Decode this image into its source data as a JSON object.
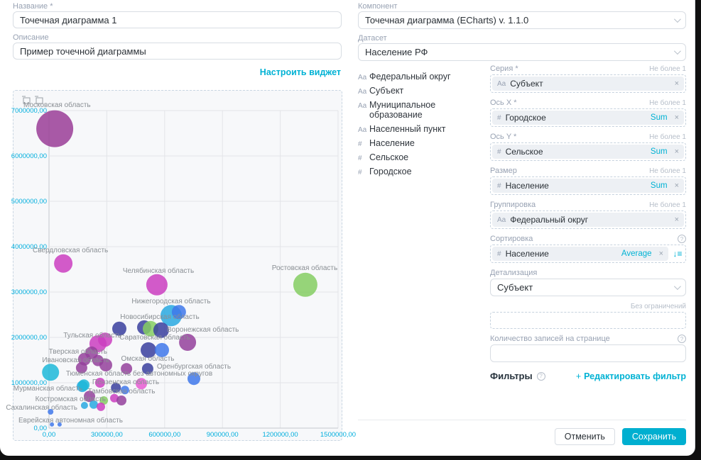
{
  "accent": "#00b2d4",
  "left": {
    "name_label": "Название *",
    "name_value": "Точечная диаграмма 1",
    "desc_label": "Описание",
    "desc_value": "Пример точечной диаграммы",
    "configure_link": "Настроить виджет"
  },
  "right": {
    "component_label": "Компонент",
    "component_value": "Точечная диаграмма (ECharts) v. 1.1.0",
    "dataset_label": "Датасет",
    "dataset_value": "Население РФ",
    "fields": [
      {
        "type": "Aa",
        "name": "Федеральный округ"
      },
      {
        "type": "Aa",
        "name": "Субъект"
      },
      {
        "type": "Aa",
        "name": "Муниципальное образование"
      },
      {
        "type": "Aa",
        "name": "Населенный пункт"
      },
      {
        "type": "#",
        "name": "Население"
      },
      {
        "type": "#",
        "name": "Сельское"
      },
      {
        "type": "#",
        "name": "Городское"
      }
    ],
    "slots": [
      {
        "label": "Серия *",
        "limit": "Не более 1",
        "chip": {
          "type": "Aa",
          "name": "Субъект",
          "agg": null
        }
      },
      {
        "label": "Ось X *",
        "limit": "Не более 1",
        "chip": {
          "type": "#",
          "name": "Городское",
          "agg": "Sum"
        }
      },
      {
        "label": "Ось Y *",
        "limit": "Не более 1",
        "chip": {
          "type": "#",
          "name": "Сельское",
          "agg": "Sum"
        }
      },
      {
        "label": "Размер",
        "limit": "Не более 1",
        "chip": {
          "type": "#",
          "name": "Население",
          "agg": "Sum"
        }
      },
      {
        "label": "Группировка",
        "limit": "Не более 1",
        "chip": {
          "type": "Aa",
          "name": "Федеральный округ",
          "agg": null
        }
      },
      {
        "label": "Сортировка",
        "limit": "",
        "help": true,
        "sort": true,
        "chip": {
          "type": "#",
          "name": "Население",
          "agg": "Average"
        }
      }
    ],
    "detail_label": "Детализация",
    "detail_value": "Субъект",
    "no_limit_label": "Без ограничений",
    "page_size_label": "Количество записей на странице",
    "filters_label": "Фильтры",
    "edit_filter_link": "Редактировать фильтр",
    "cancel_button": "Отменить",
    "save_button": "Сохранить"
  },
  "chart_data": {
    "type": "scatter",
    "xlim": [
      0,
      1500000
    ],
    "ylim": [
      0,
      7000000
    ],
    "x_tick_step": 300000,
    "y_tick_step": 1000000,
    "tick_decimal_suffix": ",00",
    "grid": true,
    "toolbox_icons": [
      "zoom-select-icon",
      "restore-icon"
    ],
    "tick_color": "#00aedd",
    "label_color": "#8a8f94",
    "colors": {
      "deepPurple": "#9a3d96",
      "magenta": "#cb3ec0",
      "purple": "#94419b",
      "navy": "#3a3f9e",
      "royal": "#3f78ea",
      "cyan": "#29a9e0",
      "teal": "#1db9d8",
      "green": "#85ce62",
      "pink": "#e75bd1"
    },
    "points": [
      {
        "name": "Московская область",
        "x": 30000,
        "y": 6600000,
        "r": 26,
        "c": "deepPurple",
        "lbl": {
          "x": 14,
          "y": 23,
          "a": "start"
        }
      },
      {
        "name": "Свердловская область",
        "x": 74000,
        "y": 3630000,
        "r": 13,
        "c": "magenta",
        "lbl": {
          "x": 27,
          "y": 228,
          "a": "start"
        }
      },
      {
        "name": "Челябинская область",
        "x": 560000,
        "y": 3160000,
        "r": 15,
        "c": "magenta",
        "lbl": {
          "x": 204,
          "y": 257,
          "a": "middle"
        }
      },
      {
        "name": "Ростовская область",
        "x": 1330000,
        "y": 3160000,
        "r": 17,
        "c": "green",
        "lbl": {
          "x": 410,
          "y": 253,
          "a": "middle"
        }
      },
      {
        "name": "Нижегородская область",
        "x": 634000,
        "y": 2480000,
        "r": 15,
        "c": "cyan",
        "lbl": {
          "x": 222,
          "y": 300,
          "a": "middle"
        }
      },
      {
        "x": 674000,
        "y": 2560000,
        "r": 10,
        "c": "royal"
      },
      {
        "x": 494000,
        "y": 2220000,
        "r": 10,
        "c": "navy"
      },
      {
        "name": "Новосибирская область",
        "x": 527000,
        "y": 2190000,
        "r": 11,
        "c": "green",
        "lbl": {
          "x": 206,
          "y": 322,
          "a": "middle"
        }
      },
      {
        "name": "Воронежская область",
        "x": 582000,
        "y": 2160000,
        "r": 11,
        "c": "navy",
        "lbl": {
          "x": 216,
          "y": 340,
          "a": "start"
        }
      },
      {
        "name": "Тульская область",
        "x": 365000,
        "y": 2190000,
        "r": 10,
        "c": "navy",
        "lbl": {
          "x": 152,
          "y": 348,
          "a": "end"
        }
      },
      {
        "x": 719000,
        "y": 1890000,
        "r": 12,
        "c": "purple"
      },
      {
        "name": "Саратовская область",
        "x": 516000,
        "y": 1720000,
        "r": 11,
        "c": "navy",
        "lbl": {
          "x": 199,
          "y": 351,
          "a": "middle"
        }
      },
      {
        "x": 586000,
        "y": 1720000,
        "r": 10,
        "c": "royal"
      },
      {
        "name": "Омская область",
        "x": 512000,
        "y": 1310000,
        "r": 8,
        "c": "navy",
        "lbl": {
          "x": 189,
          "y": 381,
          "a": "middle"
        }
      },
      {
        "name": "Оренбургская область",
        "x": 752000,
        "y": 1090000,
        "r": 9,
        "c": "royal",
        "lbl": {
          "x": 254,
          "y": 392,
          "a": "middle"
        }
      },
      {
        "name": "Тверская область",
        "x": 254000,
        "y": 1860000,
        "r": 12,
        "c": "magenta",
        "lbl": {
          "x": 132,
          "y": 371,
          "a": "end"
        }
      },
      {
        "x": 291000,
        "y": 1950000,
        "r": 10,
        "c": "magenta"
      },
      {
        "x": 221000,
        "y": 1660000,
        "r": 9,
        "c": "purple"
      },
      {
        "name": "Ивановская область",
        "x": 254000,
        "y": 1490000,
        "r": 8,
        "c": "purple",
        "lbl": {
          "x": 135,
          "y": 383,
          "a": "end"
        }
      },
      {
        "x": 184000,
        "y": 1520000,
        "r": 9,
        "c": "purple"
      },
      {
        "x": 169000,
        "y": 1330000,
        "r": 8,
        "c": "purple"
      },
      {
        "x": 295000,
        "y": 1390000,
        "r": 9,
        "c": "purple"
      },
      {
        "name": "Тюменская область без автономных округов",
        "x": 402000,
        "y": 1310000,
        "r": 8,
        "c": "purple",
        "lbl": {
          "x": 177,
          "y": 402,
          "a": "middle"
        }
      },
      {
        "name": "Мурманская область",
        "x": 8000,
        "y": 1230000,
        "r": 12,
        "c": "teal",
        "lbl": {
          "x": 97,
          "y": 423,
          "a": "end"
        }
      },
      {
        "name": "Пензенская область",
        "x": 479000,
        "y": 980000,
        "r": 8,
        "c": "pink",
        "lbl": {
          "x": 158,
          "y": 414,
          "a": "middle"
        }
      },
      {
        "x": 173000,
        "y": 920000,
        "r": 8,
        "c": "cyan"
      },
      {
        "x": 265000,
        "y": 1000000,
        "r": 7,
        "c": "magenta"
      },
      {
        "name": "Тамбовская область",
        "x": 347000,
        "y": 890000,
        "r": 7,
        "c": "navy",
        "lbl": {
          "x": 152,
          "y": 427,
          "a": "middle"
        }
      },
      {
        "x": 394000,
        "y": 840000,
        "r": 6,
        "c": "royal"
      },
      {
        "x": 181000,
        "y": 950000,
        "r": 8,
        "c": "teal"
      },
      {
        "name": "Костромская область",
        "x": 210000,
        "y": 700000,
        "r": 8,
        "c": "purple",
        "lbl": {
          "x": 130,
          "y": 438,
          "a": "end"
        }
      },
      {
        "x": 284000,
        "y": 610000,
        "r": 6,
        "c": "green"
      },
      {
        "x": 339000,
        "y": 660000,
        "r": 6,
        "c": "magenta"
      },
      {
        "x": 376000,
        "y": 610000,
        "r": 7,
        "c": "purple"
      },
      {
        "x": 232000,
        "y": 520000,
        "r": 6,
        "c": "cyan"
      },
      {
        "x": 184000,
        "y": 500000,
        "r": 5,
        "c": "cyan"
      },
      {
        "x": 269000,
        "y": 470000,
        "r": 6,
        "c": "magenta"
      },
      {
        "name": "Сахалинская область",
        "x": 8000,
        "y": 360000,
        "r": 4,
        "c": "royal",
        "lbl": {
          "x": 90,
          "y": 450,
          "a": "end"
        }
      },
      {
        "name": "Еврейская автономная область",
        "x": 15000,
        "y": 80000,
        "r": 3,
        "c": "royal",
        "lbl": {
          "x": 7,
          "y": 468,
          "a": "start"
        }
      },
      {
        "x": 55000,
        "y": 80000,
        "r": 3,
        "c": "royal"
      }
    ]
  }
}
